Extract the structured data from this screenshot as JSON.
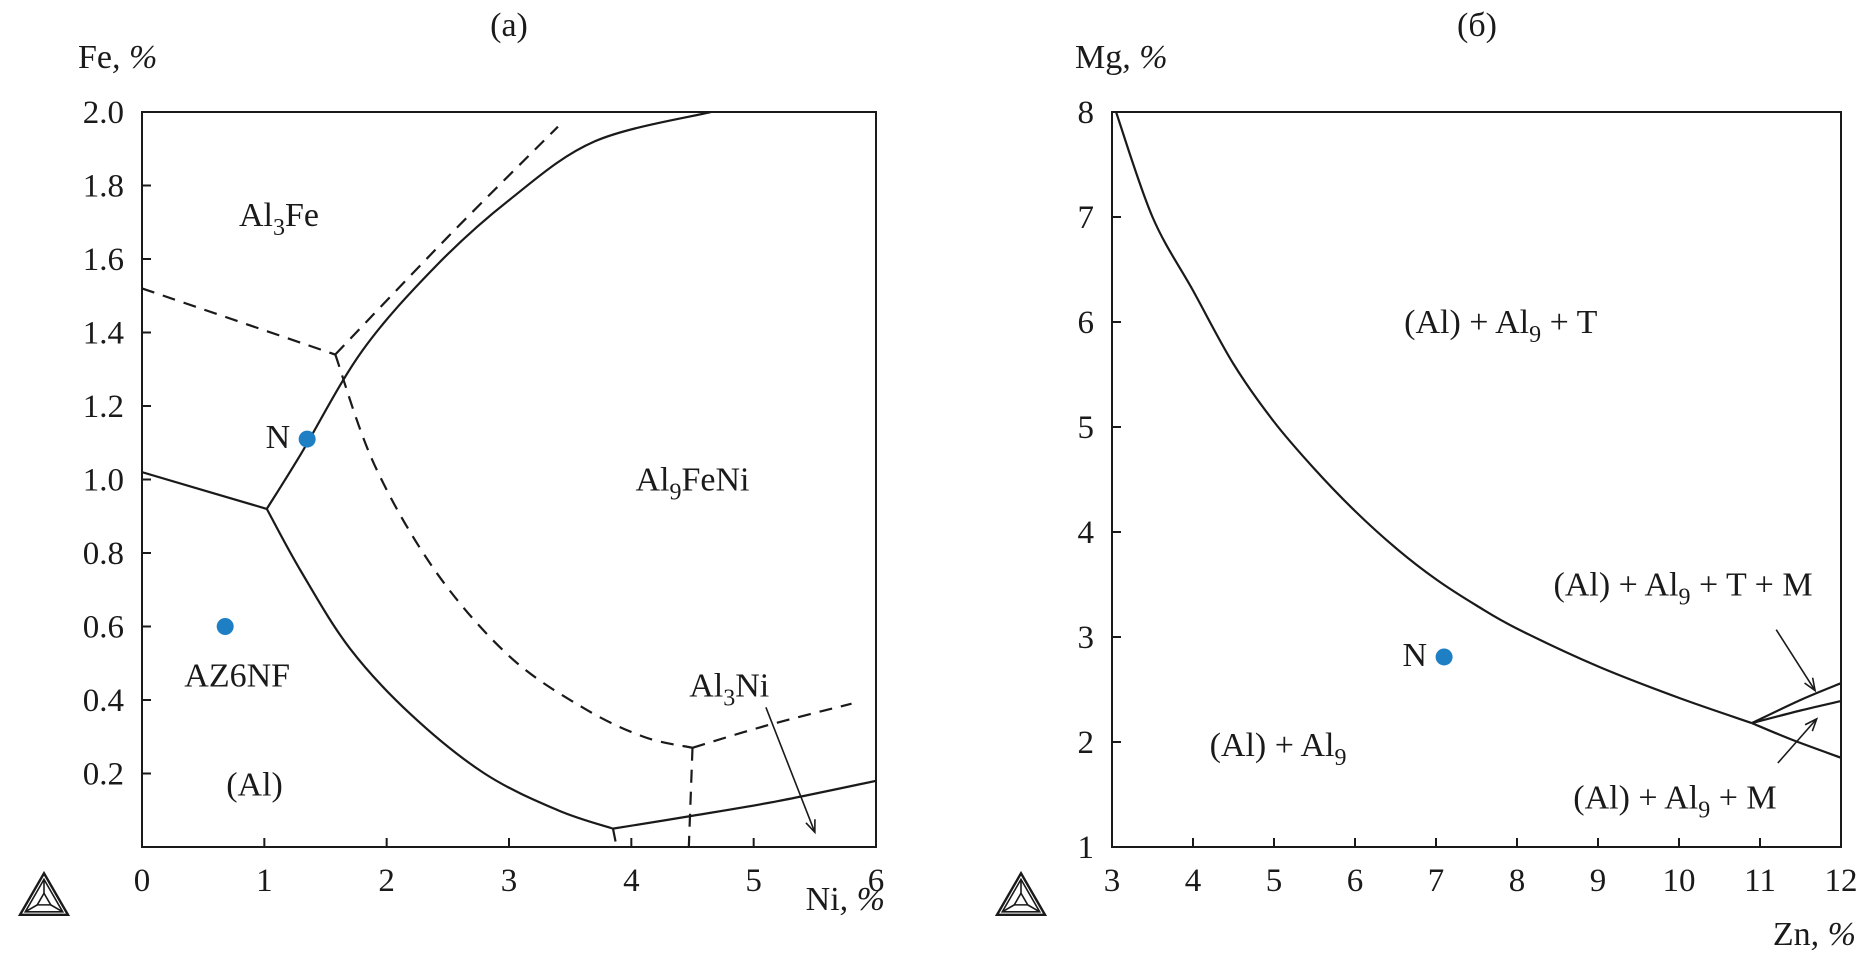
{
  "chart_data": [
    {
      "type": "scatter",
      "panel_title": "(a)",
      "xlabel_el": "Ni",
      "xlabel_unit": ", %",
      "ylabel_el": "Fe",
      "ylabel_unit": ", %",
      "xlim": [
        0,
        6
      ],
      "ylim": [
        0,
        2.0
      ],
      "xticks": [
        {
          "value": 0,
          "label": "0"
        },
        {
          "value": 1,
          "label": "1"
        },
        {
          "value": 2,
          "label": "2"
        },
        {
          "value": 3,
          "label": "3"
        },
        {
          "value": 4,
          "label": "4"
        },
        {
          "value": 5,
          "label": "5"
        },
        {
          "value": 6,
          "label": "6"
        }
      ],
      "yticks": [
        {
          "value": 0.2,
          "label": "0.2"
        },
        {
          "value": 0.4,
          "label": "0.4"
        },
        {
          "value": 0.6,
          "label": "0.6"
        },
        {
          "value": 0.8,
          "label": "0.8"
        },
        {
          "value": 1.0,
          "label": "1.0"
        },
        {
          "value": 1.2,
          "label": "1.2"
        },
        {
          "value": 1.4,
          "label": "1.4"
        },
        {
          "value": 1.6,
          "label": "1.6"
        },
        {
          "value": 1.8,
          "label": "1.8"
        },
        {
          "value": 2.0,
          "label": "2.0"
        }
      ],
      "points": [
        {
          "label": "N",
          "x": 1.35,
          "y": 1.11,
          "color": "#1f7fc4"
        },
        {
          "label": "AZ6NF",
          "x": 0.68,
          "y": 0.6,
          "color": "#1f7fc4"
        }
      ],
      "boundaries": [
        {
          "style": "solid",
          "points": [
            [
              0,
              1.02
            ],
            [
              1.02,
              0.92
            ]
          ]
        },
        {
          "style": "solid",
          "points": [
            [
              1.02,
              0.92
            ],
            [
              1.3,
              1.07
            ],
            [
              1.8,
              1.35
            ],
            [
              2.4,
              1.58
            ],
            [
              3.0,
              1.76
            ],
            [
              3.7,
              1.92
            ],
            [
              4.65,
              2.0
            ]
          ]
        },
        {
          "style": "solid",
          "points": [
            [
              1.02,
              0.92
            ],
            [
              1.3,
              0.75
            ],
            [
              1.7,
              0.54
            ],
            [
              2.2,
              0.36
            ],
            [
              2.8,
              0.2
            ],
            [
              3.4,
              0.1
            ],
            [
              3.85,
              0.05
            ]
          ]
        },
        {
          "style": "solid",
          "points": [
            [
              3.85,
              0.05
            ],
            [
              4.5,
              0.085
            ],
            [
              5.2,
              0.125
            ],
            [
              6.0,
              0.18
            ]
          ]
        },
        {
          "style": "dashed",
          "points": [
            [
              0,
              1.52
            ],
            [
              1.58,
              1.34
            ]
          ]
        },
        {
          "style": "dashed",
          "points": [
            [
              1.58,
              1.34
            ],
            [
              2.5,
              1.66
            ],
            [
              3.4,
              1.96
            ]
          ]
        },
        {
          "style": "dashed",
          "points": [
            [
              1.58,
              1.34
            ],
            [
              1.9,
              1.04
            ],
            [
              2.4,
              0.75
            ],
            [
              3.0,
              0.52
            ],
            [
              3.6,
              0.38
            ],
            [
              4.1,
              0.3
            ],
            [
              4.5,
              0.27
            ]
          ]
        },
        {
          "style": "dashed",
          "points": [
            [
              4.5,
              0.27
            ],
            [
              5.1,
              0.33
            ],
            [
              5.8,
              0.39
            ]
          ]
        },
        {
          "style": "dashed",
          "points": [
            [
              4.5,
              0.27
            ],
            [
              4.47,
              0.0
            ]
          ]
        },
        {
          "style": "dashed",
          "points": [
            [
              3.85,
              0.05
            ],
            [
              3.88,
              0.0
            ]
          ]
        }
      ],
      "regions": [
        {
          "parts": [
            {
              "t": "Al"
            },
            {
              "t": "3",
              "sub": true
            },
            {
              "t": "Fe"
            }
          ],
          "x": 1.12,
          "y": 1.72
        },
        {
          "parts": [
            {
              "t": "Al"
            },
            {
              "t": "9",
              "sub": true
            },
            {
              "t": "FeNi"
            }
          ],
          "x": 4.5,
          "y": 1.0
        },
        {
          "parts": [
            {
              "t": "Al"
            },
            {
              "t": "3",
              "sub": true
            },
            {
              "t": "Ni"
            }
          ],
          "x": 4.8,
          "y": 0.44
        },
        {
          "parts": [
            {
              "t": "(Al)"
            }
          ],
          "x": 0.92,
          "y": 0.17
        }
      ],
      "arrows": [
        {
          "from": [
            5.1,
            0.38
          ],
          "to": [
            5.5,
            0.04
          ]
        }
      ]
    },
    {
      "type": "scatter",
      "panel_title": "(б)",
      "xlabel_el": "Zn",
      "xlabel_unit": ", %",
      "ylabel_el": "Mg",
      "ylabel_unit": ", %",
      "xlim": [
        3,
        12
      ],
      "ylim": [
        1,
        8
      ],
      "xticks": [
        {
          "value": 3,
          "label": "3"
        },
        {
          "value": 4,
          "label": "4"
        },
        {
          "value": 5,
          "label": "5"
        },
        {
          "value": 6,
          "label": "6"
        },
        {
          "value": 7,
          "label": "7"
        },
        {
          "value": 8,
          "label": "8"
        },
        {
          "value": 9,
          "label": "9"
        },
        {
          "value": 10,
          "label": "10"
        },
        {
          "value": 11,
          "label": "11"
        },
        {
          "value": 12,
          "label": "12"
        }
      ],
      "yticks": [
        {
          "value": 1,
          "label": "1"
        },
        {
          "value": 2,
          "label": "2"
        },
        {
          "value": 3,
          "label": "3"
        },
        {
          "value": 4,
          "label": "4"
        },
        {
          "value": 5,
          "label": "5"
        },
        {
          "value": 6,
          "label": "6"
        },
        {
          "value": 7,
          "label": "7"
        },
        {
          "value": 8,
          "label": "8"
        }
      ],
      "points": [
        {
          "label": "N",
          "x": 7.1,
          "y": 2.81,
          "color": "#1f7fc4"
        }
      ],
      "boundaries": [
        {
          "style": "solid",
          "points": [
            [
              3.05,
              8.0
            ],
            [
              3.5,
              7.0
            ],
            [
              4.0,
              6.3
            ],
            [
              4.5,
              5.6
            ],
            [
              5.0,
              5.05
            ],
            [
              5.5,
              4.6
            ],
            [
              6.0,
              4.2
            ],
            [
              6.5,
              3.85
            ],
            [
              7.0,
              3.55
            ],
            [
              7.5,
              3.3
            ],
            [
              8.0,
              3.08
            ],
            [
              9.0,
              2.72
            ],
            [
              10.0,
              2.42
            ],
            [
              10.9,
              2.18
            ]
          ]
        },
        {
          "style": "solid",
          "points": [
            [
              10.9,
              2.18
            ],
            [
              11.4,
              2.02
            ],
            [
              12.0,
              1.85
            ]
          ]
        },
        {
          "style": "solid",
          "points": [
            [
              10.9,
              2.18
            ],
            [
              11.5,
              2.4
            ],
            [
              12.0,
              2.56
            ]
          ]
        },
        {
          "style": "solid",
          "points": [
            [
              10.9,
              2.18
            ],
            [
              11.5,
              2.3
            ],
            [
              12.0,
              2.39
            ]
          ]
        }
      ],
      "regions": [
        {
          "parts": [
            {
              "t": "(Al) + Al"
            },
            {
              "t": "9",
              "sub": true
            },
            {
              "t": " + T"
            }
          ],
          "x": 7.8,
          "y": 6.0
        },
        {
          "parts": [
            {
              "t": "(Al) + Al"
            },
            {
              "t": "9",
              "sub": true
            },
            {
              "t": " + T + M"
            }
          ],
          "x": 10.05,
          "y": 3.5
        },
        {
          "parts": [
            {
              "t": "(Al) + Al"
            },
            {
              "t": "9",
              "sub": true
            }
          ],
          "x": 5.05,
          "y": 1.97
        },
        {
          "parts": [
            {
              "t": "(Al) + Al"
            },
            {
              "t": "9",
              "sub": true
            },
            {
              "t": " + M"
            }
          ],
          "x": 9.95,
          "y": 1.47
        }
      ],
      "arrows": [
        {
          "from": [
            11.2,
            3.07
          ],
          "to": [
            11.68,
            2.49
          ]
        },
        {
          "from": [
            11.22,
            1.8
          ],
          "to": [
            11.7,
            2.22
          ]
        }
      ]
    }
  ]
}
